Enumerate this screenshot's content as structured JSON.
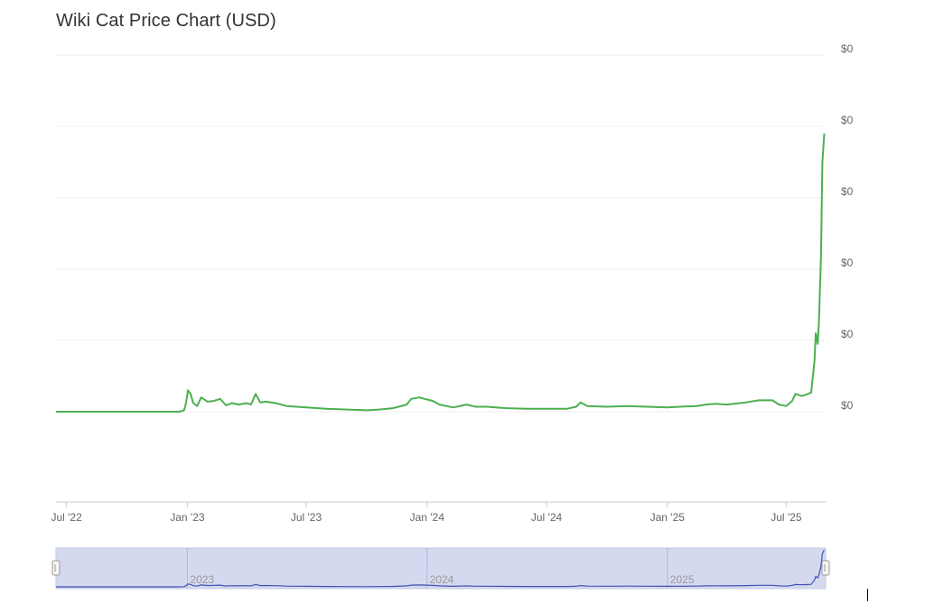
{
  "chart_title": "Wiki Cat Price Chart (USD)",
  "chart_data": {
    "type": "line",
    "title": "Wiki Cat Price Chart (USD)",
    "xlabel": "",
    "ylabel": "",
    "y_tick_labels": [
      "$0",
      "$0",
      "$0",
      "$0",
      "$0",
      "$0"
    ],
    "x_tick_labels": [
      "Jul '22",
      "Jan '23",
      "Jul '23",
      "Jan '24",
      "Jul '24",
      "Jan '25",
      "Jul '25"
    ],
    "navigator_labels": [
      "2023",
      "2024",
      "2025"
    ],
    "x_range": [
      "2022-06-15",
      "2025-08-30"
    ],
    "y_scale_note": "relative units, baseline = 0, top gridline = 5",
    "ylim": [
      -1.3,
      5
    ],
    "grid": true,
    "legend": "none",
    "series": [
      {
        "color": "#4caf50",
        "points": [
          [
            "2022-06-15",
            0.0
          ],
          [
            "2022-12-20",
            0.0
          ],
          [
            "2022-12-27",
            0.02
          ],
          [
            "2022-12-30",
            0.12
          ],
          [
            "2023-01-02",
            0.3
          ],
          [
            "2023-01-06",
            0.25
          ],
          [
            "2023-01-10",
            0.12
          ],
          [
            "2023-01-16",
            0.08
          ],
          [
            "2023-01-22",
            0.2
          ],
          [
            "2023-02-01",
            0.14
          ],
          [
            "2023-02-10",
            0.15
          ],
          [
            "2023-02-20",
            0.18
          ],
          [
            "2023-03-01",
            0.09
          ],
          [
            "2023-03-10",
            0.12
          ],
          [
            "2023-03-20",
            0.1
          ],
          [
            "2023-04-01",
            0.12
          ],
          [
            "2023-04-08",
            0.1
          ],
          [
            "2023-04-15",
            0.25
          ],
          [
            "2023-04-22",
            0.13
          ],
          [
            "2023-05-01",
            0.14
          ],
          [
            "2023-05-15",
            0.12
          ],
          [
            "2023-06-01",
            0.08
          ],
          [
            "2023-07-01",
            0.06
          ],
          [
            "2023-08-01",
            0.04
          ],
          [
            "2023-09-01",
            0.03
          ],
          [
            "2023-10-01",
            0.02
          ],
          [
            "2023-10-20",
            0.03
          ],
          [
            "2023-11-10",
            0.05
          ],
          [
            "2023-12-01",
            0.1
          ],
          [
            "2023-12-08",
            0.18
          ],
          [
            "2023-12-20",
            0.2
          ],
          [
            "2024-01-10",
            0.15
          ],
          [
            "2024-01-20",
            0.1
          ],
          [
            "2024-02-10",
            0.06
          ],
          [
            "2024-03-01",
            0.1
          ],
          [
            "2024-03-15",
            0.07
          ],
          [
            "2024-04-01",
            0.07
          ],
          [
            "2024-05-01",
            0.05
          ],
          [
            "2024-06-01",
            0.04
          ],
          [
            "2024-07-01",
            0.04
          ],
          [
            "2024-08-01",
            0.04
          ],
          [
            "2024-08-15",
            0.07
          ],
          [
            "2024-08-22",
            0.13
          ],
          [
            "2024-09-01",
            0.08
          ],
          [
            "2024-10-01",
            0.07
          ],
          [
            "2024-11-01",
            0.08
          ],
          [
            "2024-12-01",
            0.07
          ],
          [
            "2025-01-01",
            0.06
          ],
          [
            "2025-01-20",
            0.07
          ],
          [
            "2025-02-15",
            0.08
          ],
          [
            "2025-03-01",
            0.1
          ],
          [
            "2025-03-15",
            0.11
          ],
          [
            "2025-04-01",
            0.1
          ],
          [
            "2025-05-01",
            0.13
          ],
          [
            "2025-05-20",
            0.16
          ],
          [
            "2025-06-10",
            0.16
          ],
          [
            "2025-06-20",
            0.1
          ],
          [
            "2025-07-01",
            0.08
          ],
          [
            "2025-07-10",
            0.15
          ],
          [
            "2025-07-15",
            0.25
          ],
          [
            "2025-07-25",
            0.22
          ],
          [
            "2025-08-01",
            0.24
          ],
          [
            "2025-08-08",
            0.27
          ],
          [
            "2025-08-13",
            0.7
          ],
          [
            "2025-08-15",
            1.1
          ],
          [
            "2025-08-18",
            0.95
          ],
          [
            "2025-08-20",
            1.3
          ],
          [
            "2025-08-23",
            2.2
          ],
          [
            "2025-08-25",
            3.5
          ],
          [
            "2025-08-28",
            3.9
          ]
        ]
      }
    ]
  }
}
